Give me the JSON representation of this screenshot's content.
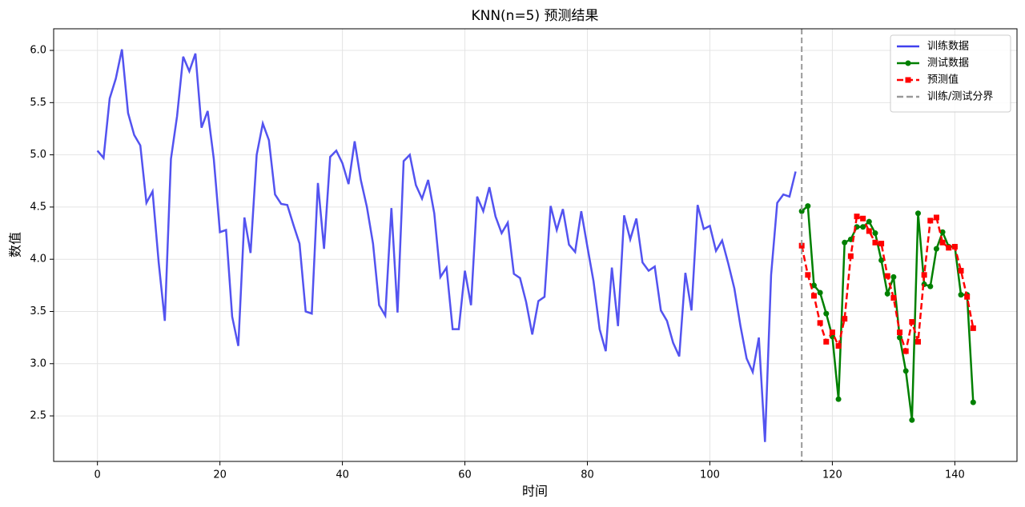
{
  "chart_data": {
    "type": "line",
    "title": "KNN(n=5) 预测结果",
    "xlabel": "时间",
    "ylabel": "数值",
    "xlim": [
      -7.15,
      150.15
    ],
    "ylim": [
      2.064,
      6.207
    ],
    "xticks": [
      0,
      20,
      40,
      60,
      80,
      100,
      120,
      140
    ],
    "yticks": [
      {
        "value": 2.5,
        "label": "2.5"
      },
      {
        "value": 3,
        "label": "3.0"
      },
      {
        "value": 3.5,
        "label": "3.5"
      },
      {
        "value": 4,
        "label": "4.0"
      },
      {
        "value": 4.5,
        "label": "4.5"
      },
      {
        "value": 5,
        "label": "5.0"
      },
      {
        "value": 5.5,
        "label": "5.5"
      },
      {
        "value": 6,
        "label": "6.0"
      }
    ],
    "grid": true,
    "legend": "upper right",
    "series": [
      {
        "name": "训练数据",
        "color": "#4040ee",
        "linestyle": "solid",
        "marker": "none",
        "x": [
          0,
          1,
          2,
          3,
          4,
          5,
          6,
          7,
          8,
          9,
          10,
          11,
          12,
          13,
          14,
          15,
          16,
          17,
          18,
          19,
          20,
          21,
          22,
          23,
          24,
          25,
          26,
          27,
          28,
          29,
          30,
          31,
          32,
          33,
          34,
          35,
          36,
          37,
          38,
          39,
          40,
          41,
          42,
          43,
          44,
          45,
          46,
          47,
          48,
          49,
          50,
          51,
          52,
          53,
          54,
          55,
          56,
          57,
          58,
          59,
          60,
          61,
          62,
          63,
          64,
          65,
          66,
          67,
          68,
          69,
          70,
          71,
          72,
          73,
          74,
          75,
          76,
          77,
          78,
          79,
          80,
          81,
          82,
          83,
          84,
          85,
          86,
          87,
          88,
          89,
          90,
          91,
          92,
          93,
          94,
          95,
          96,
          97,
          98,
          99,
          100,
          101,
          102,
          103,
          104,
          105,
          106,
          107,
          108,
          109,
          110,
          111,
          112,
          113,
          114
        ],
        "values": [
          5.04,
          4.97,
          5.54,
          5.73,
          6.01,
          5.4,
          5.19,
          5.09,
          4.54,
          4.65,
          3.97,
          3.41,
          4.96,
          5.37,
          5.94,
          5.8,
          5.97,
          5.26,
          5.42,
          4.96,
          4.26,
          4.28,
          3.45,
          3.17,
          4.4,
          4.06,
          5.0,
          5.3,
          5.14,
          4.62,
          4.53,
          4.52,
          4.33,
          4.15,
          3.5,
          3.48,
          4.73,
          4.1,
          4.98,
          5.04,
          4.92,
          4.72,
          5.13,
          4.76,
          4.5,
          4.15,
          3.56,
          3.46,
          4.49,
          3.49,
          4.94,
          5.0,
          4.71,
          4.58,
          4.76,
          4.44,
          3.83,
          3.92,
          3.33,
          3.33,
          3.89,
          3.56,
          4.6,
          4.46,
          4.69,
          4.41,
          4.25,
          4.35,
          3.86,
          3.82,
          3.59,
          3.28,
          3.6,
          3.64,
          4.51,
          4.28,
          4.48,
          4.14,
          4.07,
          4.46,
          4.12,
          3.79,
          3.33,
          3.12,
          3.92,
          3.36,
          4.42,
          4.19,
          4.39,
          3.97,
          3.89,
          3.93,
          3.51,
          3.41,
          3.2,
          3.07,
          3.87,
          3.51,
          4.52,
          4.29,
          4.32,
          4.08,
          4.18,
          3.96,
          3.72,
          3.36,
          3.05,
          2.92,
          3.25,
          2.25,
          3.85,
          4.54,
          4.62,
          4.6,
          4.84
        ]
      },
      {
        "name": "测试数据",
        "color": "#008000",
        "linestyle": "solid",
        "marker": "circle",
        "x": [
          115,
          116,
          117,
          118,
          119,
          120,
          121,
          122,
          123,
          124,
          125,
          126,
          127,
          128,
          129,
          130,
          131,
          132,
          133,
          134,
          135,
          136,
          137,
          138,
          139,
          140,
          141,
          142,
          143
        ],
        "values": [
          4.46,
          4.51,
          3.75,
          3.68,
          3.48,
          3.26,
          2.66,
          4.16,
          4.19,
          4.31,
          4.31,
          4.36,
          4.25,
          3.99,
          3.67,
          3.83,
          3.25,
          2.93,
          2.46,
          4.44,
          3.76,
          3.74,
          4.1,
          4.26,
          4.12,
          4.12,
          3.66,
          3.66,
          2.63
        ]
      },
      {
        "name": "预测值",
        "color": "#ff0000",
        "linestyle": "dashed",
        "marker": "square",
        "x": [
          115,
          116,
          117,
          118,
          119,
          120,
          121,
          122,
          123,
          124,
          125,
          126,
          127,
          128,
          129,
          130,
          131,
          132,
          133,
          134,
          135,
          136,
          137,
          138,
          139,
          140,
          141,
          142,
          143
        ],
        "values": [
          4.13,
          3.85,
          3.65,
          3.39,
          3.21,
          3.3,
          3.17,
          3.43,
          4.03,
          4.41,
          4.39,
          4.27,
          4.16,
          4.15,
          3.84,
          3.63,
          3.3,
          3.12,
          3.4,
          3.21,
          3.85,
          4.37,
          4.4,
          4.16,
          4.11,
          4.12,
          3.89,
          3.64,
          3.34
        ]
      }
    ],
    "vline": {
      "x": 115,
      "name": "训练/测试分界",
      "color": "#999999"
    }
  }
}
